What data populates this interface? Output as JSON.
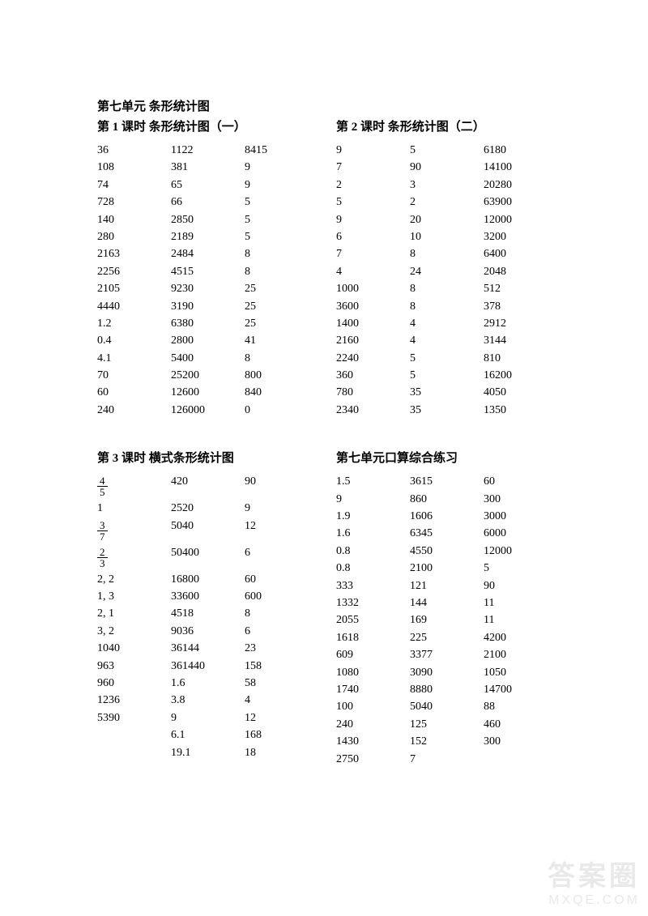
{
  "unit_title": "第七单元 条形统计图",
  "lessons": {
    "l1": {
      "title": "第 1 课时 条形统计图（一）",
      "cols": [
        [
          "36",
          "108",
          "74",
          "728",
          "140",
          "280",
          "2163",
          "2256",
          "2105",
          "4440",
          "1.2",
          "0.4",
          "4.1",
          "70",
          "60",
          "240"
        ],
        [
          "1122",
          "381",
          "65",
          "66",
          "2850",
          "2189",
          "2484",
          "4515",
          "9230",
          "3190",
          "6380",
          "2800",
          "5400",
          "25200",
          "12600",
          "126000"
        ],
        [
          "8415",
          "9",
          "9",
          "5",
          "5",
          "5",
          "8",
          "8",
          "25",
          "25",
          "25",
          "41",
          "8",
          "800",
          "840",
          "0"
        ]
      ]
    },
    "l2": {
      "title": "第 2 课时 条形统计图（二）",
      "cols": [
        [
          "9",
          "7",
          "2",
          "5",
          "9",
          "6",
          "7",
          "4",
          "1000",
          "3600",
          "1400",
          "2160",
          "2240",
          "360",
          "780",
          "2340"
        ],
        [
          "5",
          "90",
          "3",
          "2",
          "20",
          "10",
          "8",
          "24",
          "8",
          "8",
          "4",
          "4",
          "5",
          "5",
          "35",
          "35"
        ],
        [
          "6180",
          "14100",
          "20280",
          "63900",
          "12000",
          "3200",
          "6400",
          "2048",
          "512",
          "378",
          "2912",
          "3144",
          "810",
          "16200",
          "4050",
          "1350"
        ]
      ]
    },
    "l3": {
      "title": "第 3 课时 横式条形统计图",
      "cols": [
        [
          {
            "frac": [
              4,
              5
            ]
          },
          "1",
          {
            "frac": [
              3,
              7
            ]
          },
          {
            "frac": [
              2,
              3
            ]
          },
          "2, 2",
          "1, 3",
          "2, 1",
          "3, 2",
          "1040",
          "963",
          "960",
          "1236",
          "5390",
          "",
          "",
          ""
        ],
        [
          "420",
          "2520",
          "5040",
          "50400",
          "16800",
          "33600",
          "4518",
          "9036",
          "36144",
          "361440",
          "1.6",
          "3.8",
          "9",
          "6.1",
          "19.1",
          ""
        ],
        [
          "90",
          "9",
          "12",
          "6",
          "60",
          "600",
          "8",
          "6",
          "23",
          "158",
          "58",
          "4",
          "12",
          "168",
          "18",
          ""
        ]
      ]
    },
    "l4": {
      "title": "第七单元口算综合练习",
      "cols": [
        [
          "1.5",
          "9",
          "1.9",
          "1.6",
          "0.8",
          "0.8",
          "333",
          "1332",
          "2055",
          "1618",
          "609",
          "1080",
          "1740",
          "100",
          "240",
          "1430",
          "2750"
        ],
        [
          "3615",
          "860",
          "1606",
          "6345",
          "4550",
          "2100",
          "121",
          "144",
          "169",
          "225",
          "3377",
          "3090",
          "8880",
          "5040",
          "125",
          "152",
          "7"
        ],
        [
          "60",
          "300",
          "3000",
          "6000",
          "12000",
          "5",
          "90",
          "11",
          "11",
          "4200",
          "2100",
          "1050",
          "14700",
          "88",
          "460",
          "300",
          ""
        ]
      ]
    }
  },
  "watermark": {
    "main": "答案圈",
    "sub": "MXQE.COM"
  }
}
